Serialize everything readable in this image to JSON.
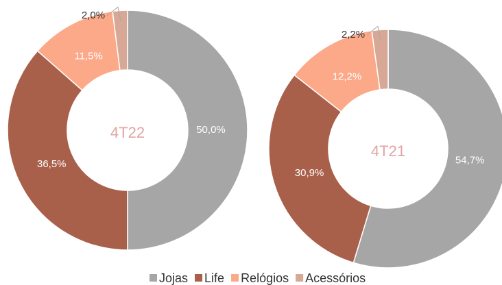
{
  "chart_data": [
    {
      "type": "pie",
      "title": "4T22",
      "values": [
        50.0,
        36.5,
        11.5,
        2.0
      ],
      "value_labels": [
        "50,0%",
        "36,5%",
        "11,5%",
        "2,0%"
      ]
    },
    {
      "type": "pie",
      "title": "4T21",
      "values": [
        54.7,
        30.9,
        12.2,
        2.2
      ],
      "value_labels": [
        "54,7%",
        "30,9%",
        "12,2%",
        "2,2%"
      ]
    }
  ],
  "legend": {
    "categories": [
      "Jojas",
      "Life",
      "Relógios",
      "Acessórios"
    ],
    "colors": [
      "#a6a6a6",
      "#a9604a",
      "#fca98a",
      "#d8a897"
    ]
  }
}
